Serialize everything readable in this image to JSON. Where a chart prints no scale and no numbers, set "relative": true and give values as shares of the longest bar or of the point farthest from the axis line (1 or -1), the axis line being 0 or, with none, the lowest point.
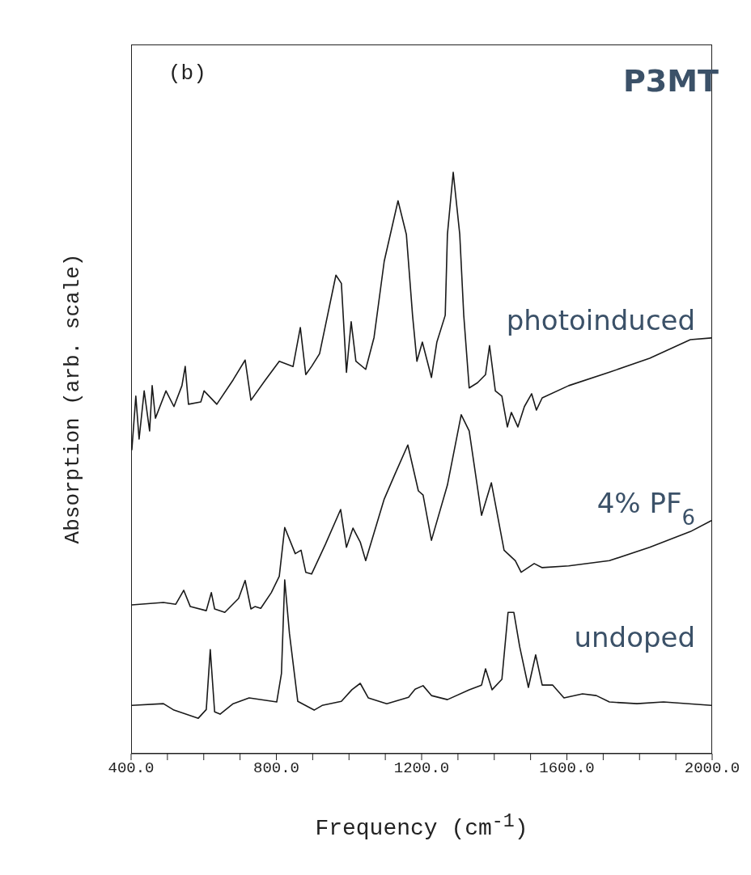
{
  "chart_data": {
    "type": "line",
    "relative": true,
    "xlabel": "Frequency (cm$^{-1}$)",
    "ylabel": "Absorption (arb. scale)",
    "annotations": [
      "(b)",
      "P3MT"
    ],
    "xlim": [
      400,
      2000
    ],
    "xticks": [
      {
        "value": 400,
        "label": "400.0"
      },
      {
        "value": 500,
        "label": null
      },
      {
        "value": 600,
        "label": null
      },
      {
        "value": 700,
        "label": null
      },
      {
        "value": 800,
        "label": "800.0"
      },
      {
        "value": 900,
        "label": null
      },
      {
        "value": 1000,
        "label": null
      },
      {
        "value": 1100,
        "label": null
      },
      {
        "value": 1200,
        "label": "1200.0"
      },
      {
        "value": 1300,
        "label": null
      },
      {
        "value": 1400,
        "label": null
      },
      {
        "value": 1500,
        "label": null
      },
      {
        "value": 1600,
        "label": "1600.0"
      },
      {
        "value": 1700,
        "label": null
      },
      {
        "value": 1800,
        "label": null
      },
      {
        "value": 1900,
        "label": null
      },
      {
        "value": 2000,
        "label": "2000.0"
      }
    ],
    "grid": false,
    "series": [
      {
        "name": "photoinduced",
        "color": "#1a1a1a",
        "x": [
          402,
          413,
          422,
          436,
          451,
          458,
          467,
          496,
          518,
          540,
          549,
          558,
          592,
          601,
          636,
          681,
          714,
          730,
          770,
          808,
          846,
          866,
          881,
          897,
          919,
          964,
          979,
          993,
          1006,
          1019,
          1046,
          1069,
          1097,
          1135,
          1158,
          1175,
          1187,
          1202,
          1227,
          1242,
          1265,
          1271,
          1287,
          1305,
          1316,
          1331,
          1354,
          1376,
          1387,
          1403,
          1421,
          1436,
          1447,
          1465,
          1483,
          1503,
          1516,
          1532,
          1605,
          1717,
          1828,
          1940,
          1998
        ],
        "values": [
          0.522,
          0.615,
          0.541,
          0.624,
          0.555,
          0.633,
          0.577,
          0.624,
          0.597,
          0.633,
          0.666,
          0.601,
          0.605,
          0.624,
          0.601,
          0.643,
          0.677,
          0.608,
          0.643,
          0.675,
          0.666,
          0.733,
          0.652,
          0.666,
          0.688,
          0.823,
          0.809,
          0.656,
          0.743,
          0.675,
          0.661,
          0.716,
          0.847,
          0.951,
          0.893,
          0.754,
          0.675,
          0.708,
          0.647,
          0.708,
          0.754,
          0.893,
          1.0,
          0.893,
          0.754,
          0.629,
          0.638,
          0.652,
          0.702,
          0.624,
          0.615,
          0.562,
          0.587,
          0.562,
          0.597,
          0.619,
          0.591,
          0.612,
          0.633,
          0.656,
          0.68,
          0.712,
          0.715
        ]
      },
      {
        "name": "4% PF$_{6}$",
        "color": "#1a1a1a",
        "x": [
          402,
          489,
          523,
          545,
          563,
          607,
          621,
          630,
          658,
          696,
          714,
          730,
          741,
          757,
          786,
          808,
          823,
          852,
          868,
          881,
          897,
          935,
          977,
          993,
          1011,
          1031,
          1046,
          1097,
          1126,
          1162,
          1191,
          1204,
          1227,
          1271,
          1309,
          1331,
          1365,
          1392,
          1427,
          1458,
          1474,
          1510,
          1532,
          1605,
          1717,
          1828,
          1940,
          1998
        ],
        "values": [
          0.256,
          0.26,
          0.257,
          0.281,
          0.253,
          0.246,
          0.277,
          0.249,
          0.243,
          0.267,
          0.298,
          0.249,
          0.253,
          0.25,
          0.277,
          0.305,
          0.389,
          0.344,
          0.35,
          0.312,
          0.309,
          0.36,
          0.42,
          0.355,
          0.388,
          0.364,
          0.332,
          0.438,
          0.48,
          0.531,
          0.452,
          0.445,
          0.367,
          0.462,
          0.583,
          0.555,
          0.41,
          0.466,
          0.35,
          0.332,
          0.312,
          0.327,
          0.32,
          0.323,
          0.332,
          0.355,
          0.382,
          0.401
        ]
      },
      {
        "name": "undoped",
        "color": "#1a1a1a",
        "x": [
          402,
          489,
          518,
          585,
          607,
          618,
          630,
          645,
          681,
          725,
          801,
          814,
          823,
          836,
          859,
          904,
          926,
          979,
          1008,
          1031,
          1053,
          1104,
          1164,
          1182,
          1204,
          1227,
          1271,
          1331,
          1365,
          1376,
          1394,
          1421,
          1438,
          1454,
          1470,
          1494,
          1514,
          1532,
          1561,
          1592,
          1643,
          1681,
          1717,
          1793,
          1866,
          1998
        ],
        "values": [
          0.083,
          0.086,
          0.075,
          0.061,
          0.076,
          0.179,
          0.072,
          0.068,
          0.086,
          0.096,
          0.089,
          0.138,
          0.299,
          0.207,
          0.09,
          0.075,
          0.083,
          0.09,
          0.11,
          0.121,
          0.096,
          0.086,
          0.097,
          0.111,
          0.117,
          0.1,
          0.093,
          0.11,
          0.118,
          0.146,
          0.11,
          0.128,
          0.243,
          0.243,
          0.184,
          0.114,
          0.17,
          0.118,
          0.118,
          0.096,
          0.103,
          0.1,
          0.089,
          0.086,
          0.089,
          0.083
        ]
      }
    ]
  }
}
